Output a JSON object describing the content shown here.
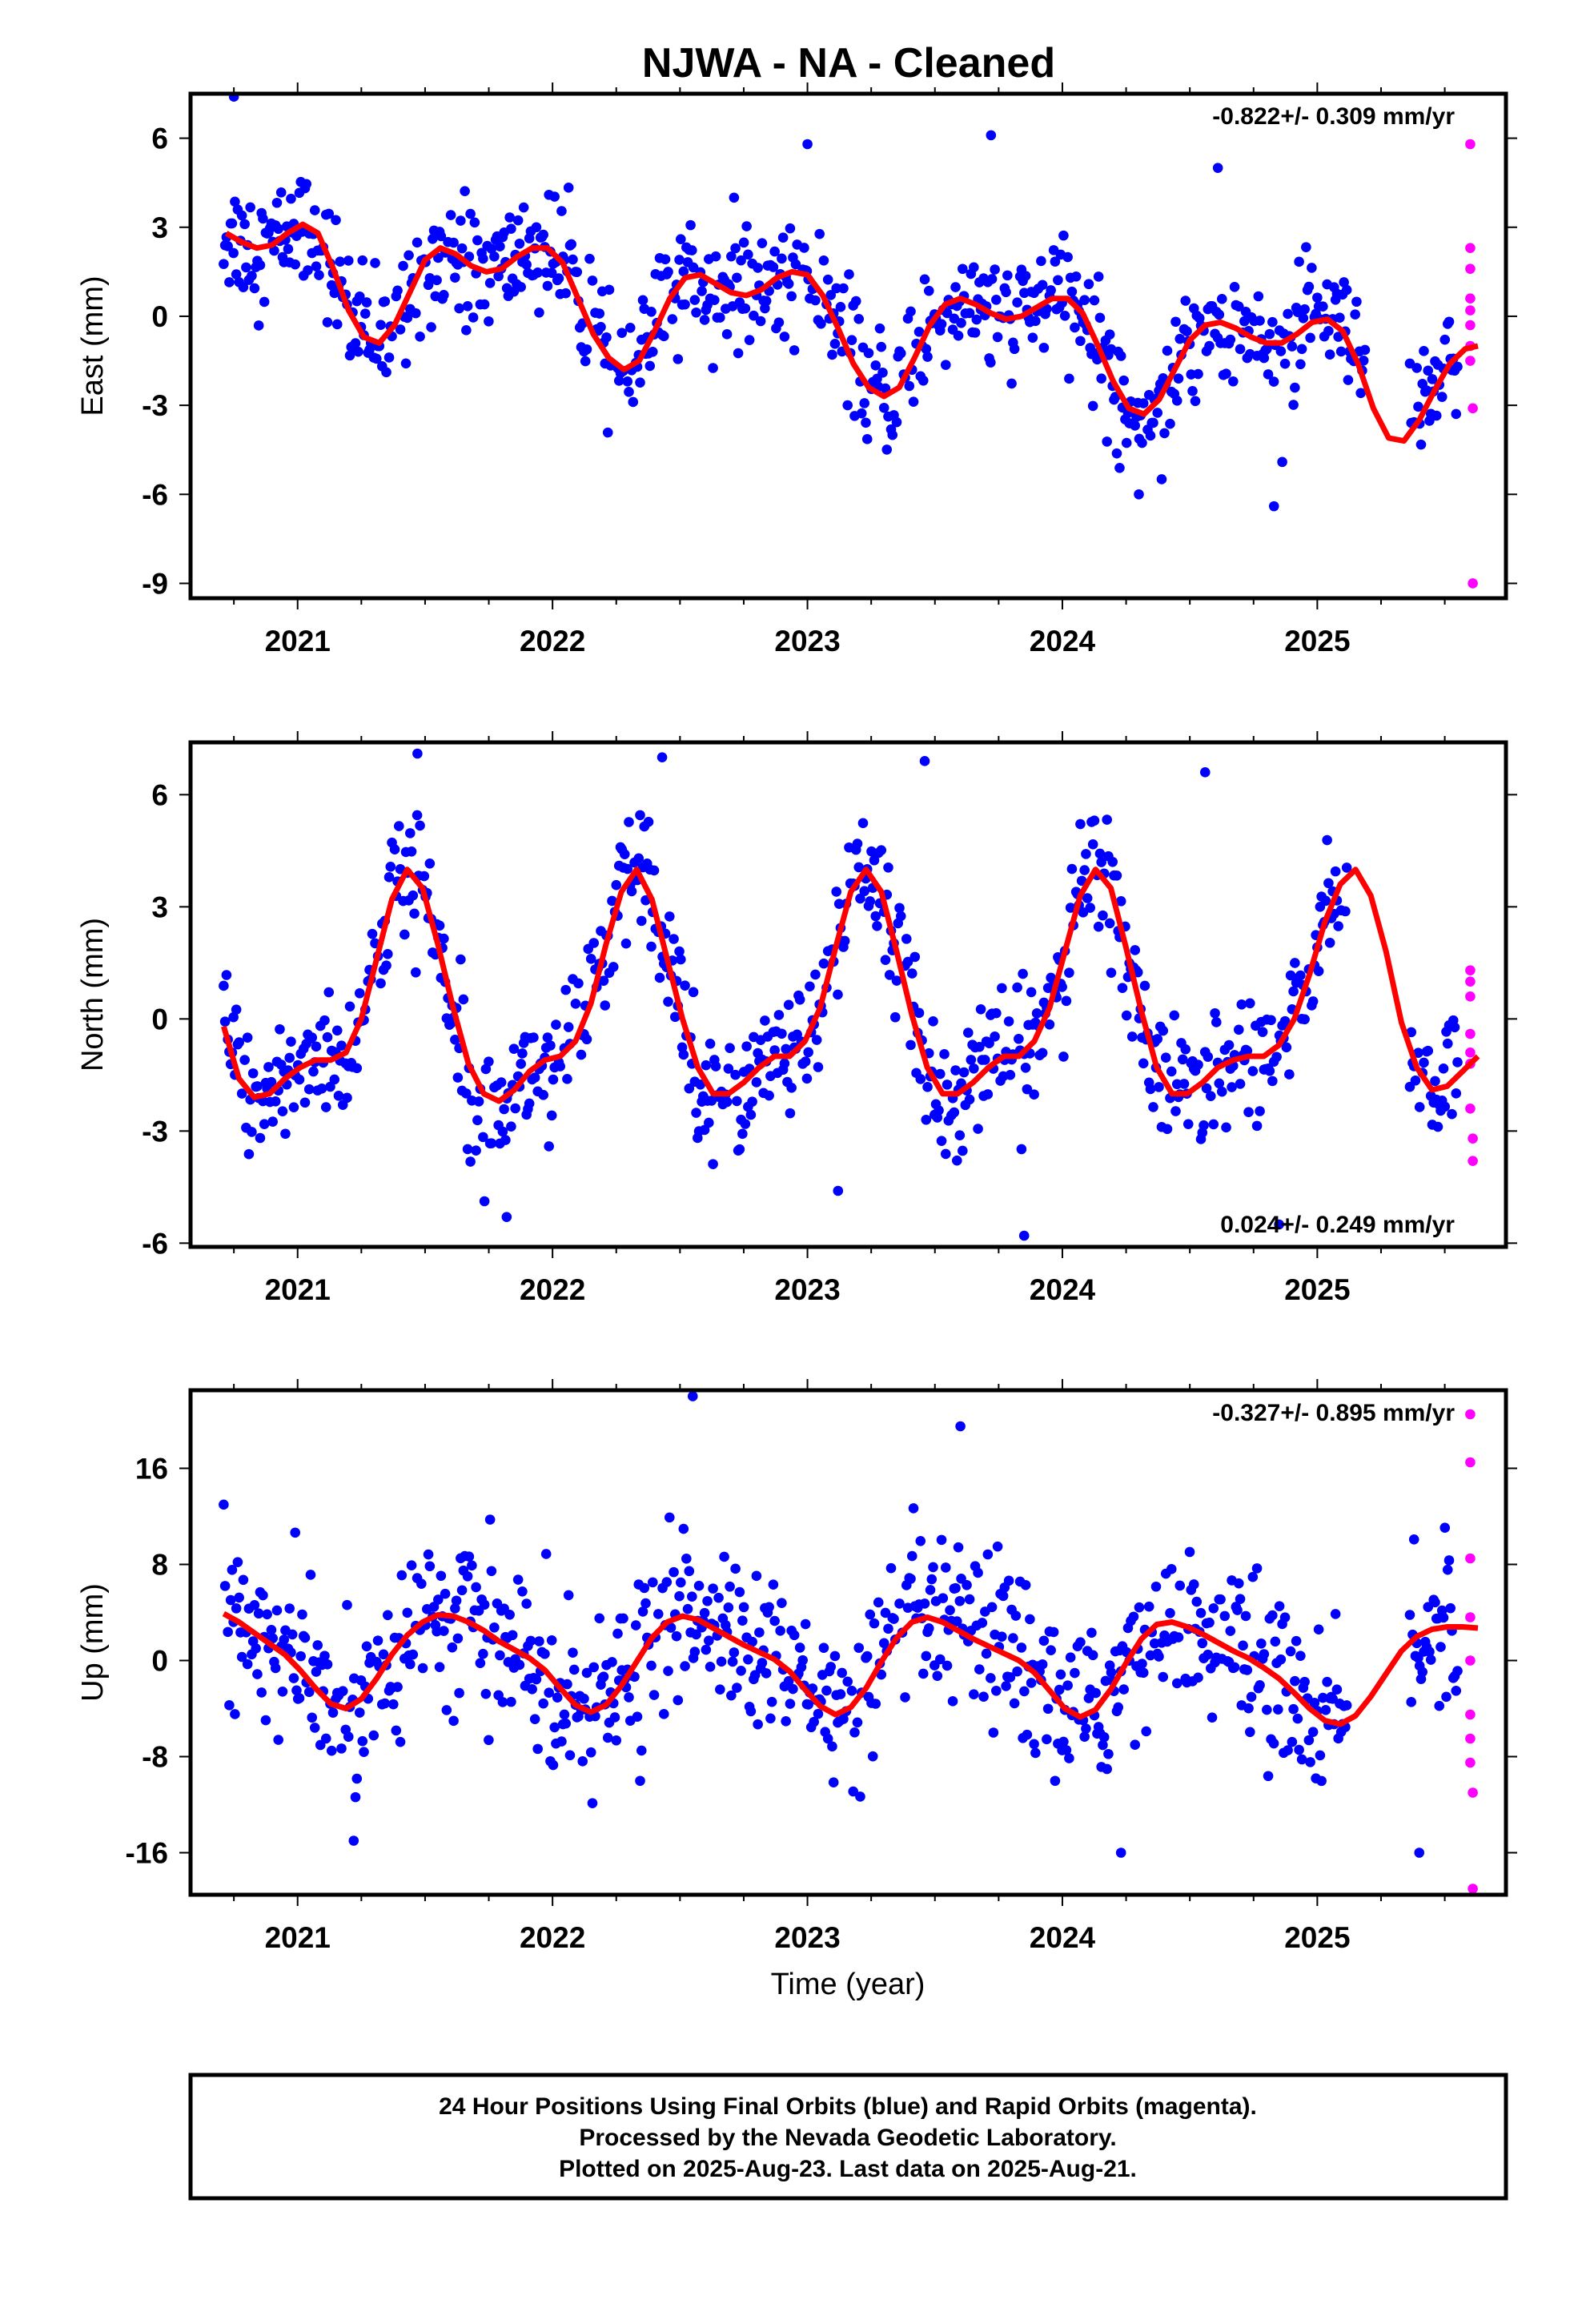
{
  "title": "NJWA  - NA - Cleaned",
  "xlabel": "Time (year)",
  "footer": [
    "24 Hour Positions Using Final Orbits (blue) and Rapid Orbits (magenta).",
    "Processed by the Nevada Geodetic Laboratory.",
    "Plotted on 2025-Aug-23. Last data on 2025-Aug-21."
  ],
  "colors": {
    "final": "#0000ff",
    "rapid": "#ff00ff",
    "model": "#ff0000",
    "frame": "#000000"
  },
  "chart_data": [
    {
      "type": "scatter",
      "name": "east",
      "ylabel": "East (mm)",
      "rate_label": "-0.822+/- 0.309 mm/yr",
      "rate_position": "top-right",
      "xlim": [
        2020.58,
        2025.74
      ],
      "ylim": [
        -9.5,
        7.5
      ],
      "x_ticks": [
        2021,
        2022,
        2023,
        2024,
        2025
      ],
      "x_tick_labels": [
        "2021",
        "2022",
        "2023",
        "2024",
        "2025"
      ],
      "y_ticks": [
        6,
        3,
        0,
        -3,
        -6,
        -9
      ],
      "y_tick_labels": [
        "6",
        "3",
        "0",
        "-3",
        "-6",
        "-9"
      ],
      "grid": false,
      "model_curve": {
        "x": [
          2020.72,
          2020.78,
          2020.84,
          2020.9,
          2020.96,
          2021.02,
          2021.08,
          2021.14,
          2021.2,
          2021.26,
          2021.32,
          2021.38,
          2021.44,
          2021.5,
          2021.56,
          2021.62,
          2021.68,
          2021.74,
          2021.8,
          2021.86,
          2021.92,
          2021.98,
          2022.04,
          2022.1,
          2022.16,
          2022.22,
          2022.28,
          2022.34,
          2022.4,
          2022.46,
          2022.52,
          2022.58,
          2022.64,
          2022.7,
          2022.76,
          2022.82,
          2022.88,
          2022.94,
          2023.0,
          2023.06,
          2023.12,
          2023.18,
          2023.24,
          2023.3,
          2023.36,
          2023.42,
          2023.48,
          2023.54,
          2023.6,
          2023.66,
          2023.72,
          2023.78,
          2023.84,
          2023.9,
          2023.96,
          2024.02,
          2024.08,
          2024.14,
          2024.2,
          2024.26,
          2024.32,
          2024.38,
          2024.44,
          2024.5,
          2024.56,
          2024.62,
          2024.68,
          2024.74,
          2024.8,
          2024.86,
          2024.92,
          2024.98,
          2025.04,
          2025.1,
          2025.16,
          2025.22,
          2025.28,
          2025.34,
          2025.4,
          2025.46,
          2025.52,
          2025.58,
          2025.63
        ],
        "y": [
          2.8,
          2.5,
          2.3,
          2.4,
          2.8,
          3.1,
          2.8,
          1.6,
          0.2,
          -0.7,
          -0.9,
          -0.3,
          0.8,
          1.9,
          2.3,
          2.1,
          1.7,
          1.5,
          1.6,
          2.0,
          2.3,
          2.3,
          1.8,
          0.6,
          -0.6,
          -1.4,
          -1.8,
          -1.5,
          -0.5,
          0.6,
          1.3,
          1.4,
          1.1,
          0.8,
          0.7,
          0.9,
          1.3,
          1.5,
          1.4,
          0.7,
          -0.4,
          -1.6,
          -2.4,
          -2.7,
          -2.4,
          -1.4,
          -0.3,
          0.4,
          0.6,
          0.4,
          0.1,
          -0.1,
          0.0,
          0.3,
          0.6,
          0.6,
          0.1,
          -1.0,
          -2.2,
          -3.1,
          -3.3,
          -2.8,
          -1.8,
          -0.8,
          -0.3,
          -0.2,
          -0.4,
          -0.7,
          -0.9,
          -0.9,
          -0.6,
          -0.2,
          -0.1,
          -0.5,
          -1.6,
          -3.1,
          -4.1,
          -4.2,
          -3.5,
          -2.5,
          -1.6,
          -1.1,
          -1.0
        ]
      },
      "final_points": {
        "x_start": 2020.71,
        "x_end": 2025.55,
        "step": 0.0055,
        "gap_x_ranges": [
          [
            2025.19,
            2025.36
          ]
        ],
        "trend_mm_per_yr": -0.822,
        "scatter_sd_mm": 1.0,
        "example_outliers": [
          {
            "x": 2020.75,
            "y": 7.4
          },
          {
            "x": 2023.0,
            "y": 5.8
          },
          {
            "x": 2023.72,
            "y": 6.1
          },
          {
            "x": 2024.61,
            "y": 5.0
          },
          {
            "x": 2024.83,
            "y": -6.4
          },
          {
            "x": 2024.3,
            "y": -6.0
          }
        ]
      },
      "rapid_points": {
        "x": [
          2025.6,
          2025.6,
          2025.6,
          2025.6,
          2025.6,
          2025.6,
          2025.6,
          2025.6,
          2025.61,
          2025.61
        ],
        "y": [
          5.8,
          2.3,
          1.6,
          0.6,
          0.2,
          -0.3,
          -1.0,
          -1.5,
          -3.1,
          -9.0
        ]
      }
    },
    {
      "type": "scatter",
      "name": "north",
      "ylabel": "North (mm)",
      "rate_label": "0.024+/- 0.249 mm/yr",
      "rate_position": "bottom-right",
      "xlim": [
        2020.58,
        2025.74
      ],
      "ylim": [
        -6.1,
        7.4
      ],
      "x_ticks": [
        2021,
        2022,
        2023,
        2024,
        2025
      ],
      "x_tick_labels": [
        "2021",
        "2022",
        "2023",
        "2024",
        "2025"
      ],
      "y_ticks": [
        6,
        3,
        0,
        -3,
        -6
      ],
      "y_tick_labels": [
        "6",
        "3",
        "0",
        "-3",
        "-6"
      ],
      "grid": false,
      "model_curve": {
        "x": [
          2020.71,
          2020.77,
          2020.83,
          2020.89,
          2020.95,
          2021.01,
          2021.07,
          2021.13,
          2021.19,
          2021.25,
          2021.31,
          2021.37,
          2021.43,
          2021.49,
          2021.55,
          2021.61,
          2021.67,
          2021.73,
          2021.79,
          2021.85,
          2021.91,
          2021.97,
          2022.03,
          2022.09,
          2022.15,
          2022.21,
          2022.27,
          2022.33,
          2022.39,
          2022.45,
          2022.51,
          2022.57,
          2022.63,
          2022.69,
          2022.75,
          2022.81,
          2022.87,
          2022.93,
          2022.99,
          2023.05,
          2023.11,
          2023.17,
          2023.23,
          2023.29,
          2023.35,
          2023.41,
          2023.47,
          2023.53,
          2023.59,
          2023.65,
          2023.71,
          2023.77,
          2023.83,
          2023.89,
          2023.95,
          2024.01,
          2024.07,
          2024.13,
          2024.19,
          2024.25,
          2024.31,
          2024.37,
          2024.43,
          2024.49,
          2024.55,
          2024.61,
          2024.67,
          2024.73,
          2024.79,
          2024.85,
          2024.91,
          2024.97,
          2025.03,
          2025.09,
          2025.15,
          2025.21,
          2025.27,
          2025.33,
          2025.39,
          2025.45,
          2025.51,
          2025.57,
          2025.63
        ],
        "y": [
          -0.2,
          -1.6,
          -2.1,
          -2.0,
          -1.6,
          -1.3,
          -1.1,
          -1.1,
          -0.9,
          0.0,
          1.6,
          3.2,
          4.0,
          3.5,
          2.0,
          0.3,
          -1.2,
          -2.0,
          -2.2,
          -1.9,
          -1.4,
          -1.1,
          -1.0,
          -0.6,
          0.4,
          2.0,
          3.4,
          4.0,
          3.2,
          1.6,
          0.0,
          -1.3,
          -2.0,
          -2.0,
          -1.7,
          -1.3,
          -1.0,
          -1.0,
          -0.6,
          0.3,
          1.9,
          3.4,
          4.0,
          3.4,
          1.8,
          0.1,
          -1.3,
          -2.0,
          -2.0,
          -1.7,
          -1.3,
          -1.0,
          -1.0,
          -0.6,
          0.3,
          1.8,
          3.3,
          4.0,
          3.5,
          1.9,
          0.2,
          -1.3,
          -2.0,
          -2.0,
          -1.7,
          -1.3,
          -1.1,
          -1.0,
          -1.0,
          -0.7,
          0.0,
          1.2,
          2.6,
          3.6,
          4.0,
          3.3,
          1.8,
          -0.1,
          -1.3,
          -1.9,
          -1.8,
          -1.4,
          -1.0
        ],
        "curve_note": ""
      },
      "final_points": {
        "x_start": 2020.71,
        "x_end": 2025.55,
        "step": 0.0055,
        "gap_x_ranges": [
          [
            2025.12,
            2025.36
          ]
        ],
        "trend_mm_per_yr": 0.024,
        "scatter_sd_mm": 0.85,
        "example_outliers": [
          {
            "x": 2021.47,
            "y": 7.1
          },
          {
            "x": 2022.43,
            "y": 7.0
          },
          {
            "x": 2023.46,
            "y": 6.9
          },
          {
            "x": 2024.56,
            "y": 6.6
          },
          {
            "x": 2021.82,
            "y": -5.3
          },
          {
            "x": 2023.12,
            "y": -4.6
          },
          {
            "x": 2023.85,
            "y": -5.8
          },
          {
            "x": 2024.85,
            "y": -5.5
          }
        ]
      },
      "rapid_points": {
        "x": [
          2025.6,
          2025.6,
          2025.6,
          2025.6,
          2025.6,
          2025.6,
          2025.6,
          2025.61,
          2025.61
        ],
        "y": [
          1.3,
          1.0,
          0.6,
          -0.4,
          -0.9,
          -1.2,
          -2.4,
          -3.2,
          -3.8
        ]
      }
    },
    {
      "type": "scatter",
      "name": "up",
      "ylabel": "Up (mm)",
      "rate_label": "-0.327+/- 0.895 mm/yr",
      "rate_position": "top-right",
      "xlim": [
        2020.58,
        2025.74
      ],
      "ylim": [
        -19.5,
        22.5
      ],
      "x_ticks": [
        2021,
        2022,
        2023,
        2024,
        2025
      ],
      "x_tick_labels": [
        "2021",
        "2022",
        "2023",
        "2024",
        "2025"
      ],
      "y_ticks": [
        16,
        8,
        0,
        -8,
        -16
      ],
      "y_tick_labels": [
        "16",
        "8",
        "0",
        "-8",
        "-16"
      ],
      "grid": false,
      "model_curve": {
        "x": [
          2020.71,
          2020.77,
          2020.83,
          2020.89,
          2020.95,
          2021.01,
          2021.07,
          2021.13,
          2021.19,
          2021.25,
          2021.31,
          2021.37,
          2021.43,
          2021.49,
          2021.55,
          2021.61,
          2021.67,
          2021.73,
          2021.79,
          2021.85,
          2021.91,
          2021.97,
          2022.03,
          2022.09,
          2022.15,
          2022.21,
          2022.27,
          2022.33,
          2022.39,
          2022.45,
          2022.51,
          2022.57,
          2022.63,
          2022.69,
          2022.75,
          2022.81,
          2022.87,
          2022.93,
          2022.99,
          2023.05,
          2023.11,
          2023.17,
          2023.23,
          2023.29,
          2023.35,
          2023.41,
          2023.47,
          2023.53,
          2023.59,
          2023.65,
          2023.71,
          2023.77,
          2023.83,
          2023.89,
          2023.95,
          2024.01,
          2024.07,
          2024.13,
          2024.19,
          2024.25,
          2024.31,
          2024.37,
          2024.43,
          2024.49,
          2024.55,
          2024.61,
          2024.67,
          2024.73,
          2024.79,
          2024.85,
          2024.91,
          2024.97,
          2025.03,
          2025.09,
          2025.15,
          2025.21,
          2025.27,
          2025.33,
          2025.39,
          2025.45,
          2025.51,
          2025.57,
          2025.63
        ],
        "y": [
          3.9,
          3.2,
          2.3,
          1.4,
          0.5,
          -0.8,
          -2.3,
          -3.6,
          -4.0,
          -3.2,
          -1.5,
          0.5,
          2.1,
          3.2,
          3.8,
          3.7,
          3.2,
          2.5,
          1.6,
          0.9,
          0.2,
          -0.8,
          -2.3,
          -3.7,
          -4.3,
          -3.7,
          -2.1,
          -0.1,
          1.9,
          3.2,
          3.7,
          3.4,
          2.7,
          2.0,
          1.3,
          0.7,
          0.1,
          -0.9,
          -2.4,
          -3.8,
          -4.5,
          -3.9,
          -2.3,
          -0.1,
          1.9,
          3.2,
          3.6,
          3.2,
          2.5,
          1.8,
          1.2,
          0.6,
          0.0,
          -1.0,
          -2.5,
          -4.0,
          -4.7,
          -4.1,
          -2.4,
          -0.2,
          1.8,
          3.0,
          3.2,
          2.8,
          2.2,
          1.5,
          0.8,
          0.2,
          -0.6,
          -1.5,
          -2.7,
          -4.0,
          -5.0,
          -5.3,
          -4.6,
          -3.0,
          -1.1,
          0.8,
          2.0,
          2.6,
          2.8,
          2.8,
          2.7
        ]
      },
      "final_points": {
        "x_start": 2020.71,
        "x_end": 2025.55,
        "step": 0.0055,
        "gap_x_ranges": [
          [
            2025.12,
            2025.36
          ]
        ],
        "trend_mm_per_yr": -0.327,
        "scatter_sd_mm": 3.3,
        "example_outliers": [
          {
            "x": 2022.55,
            "y": 22.0
          },
          {
            "x": 2023.6,
            "y": 19.5
          },
          {
            "x": 2021.22,
            "y": -15.0
          },
          {
            "x": 2024.23,
            "y": -16.0
          },
          {
            "x": 2025.4,
            "y": -16.0
          }
        ]
      },
      "rapid_points": {
        "x": [
          2025.6,
          2025.6,
          2025.6,
          2025.6,
          2025.6,
          2025.6,
          2025.6,
          2025.6,
          2025.61,
          2025.61
        ],
        "y": [
          20.5,
          16.5,
          8.5,
          3.6,
          0.0,
          -4.5,
          -6.5,
          -8.5,
          -11.0,
          -19.0
        ]
      }
    }
  ]
}
